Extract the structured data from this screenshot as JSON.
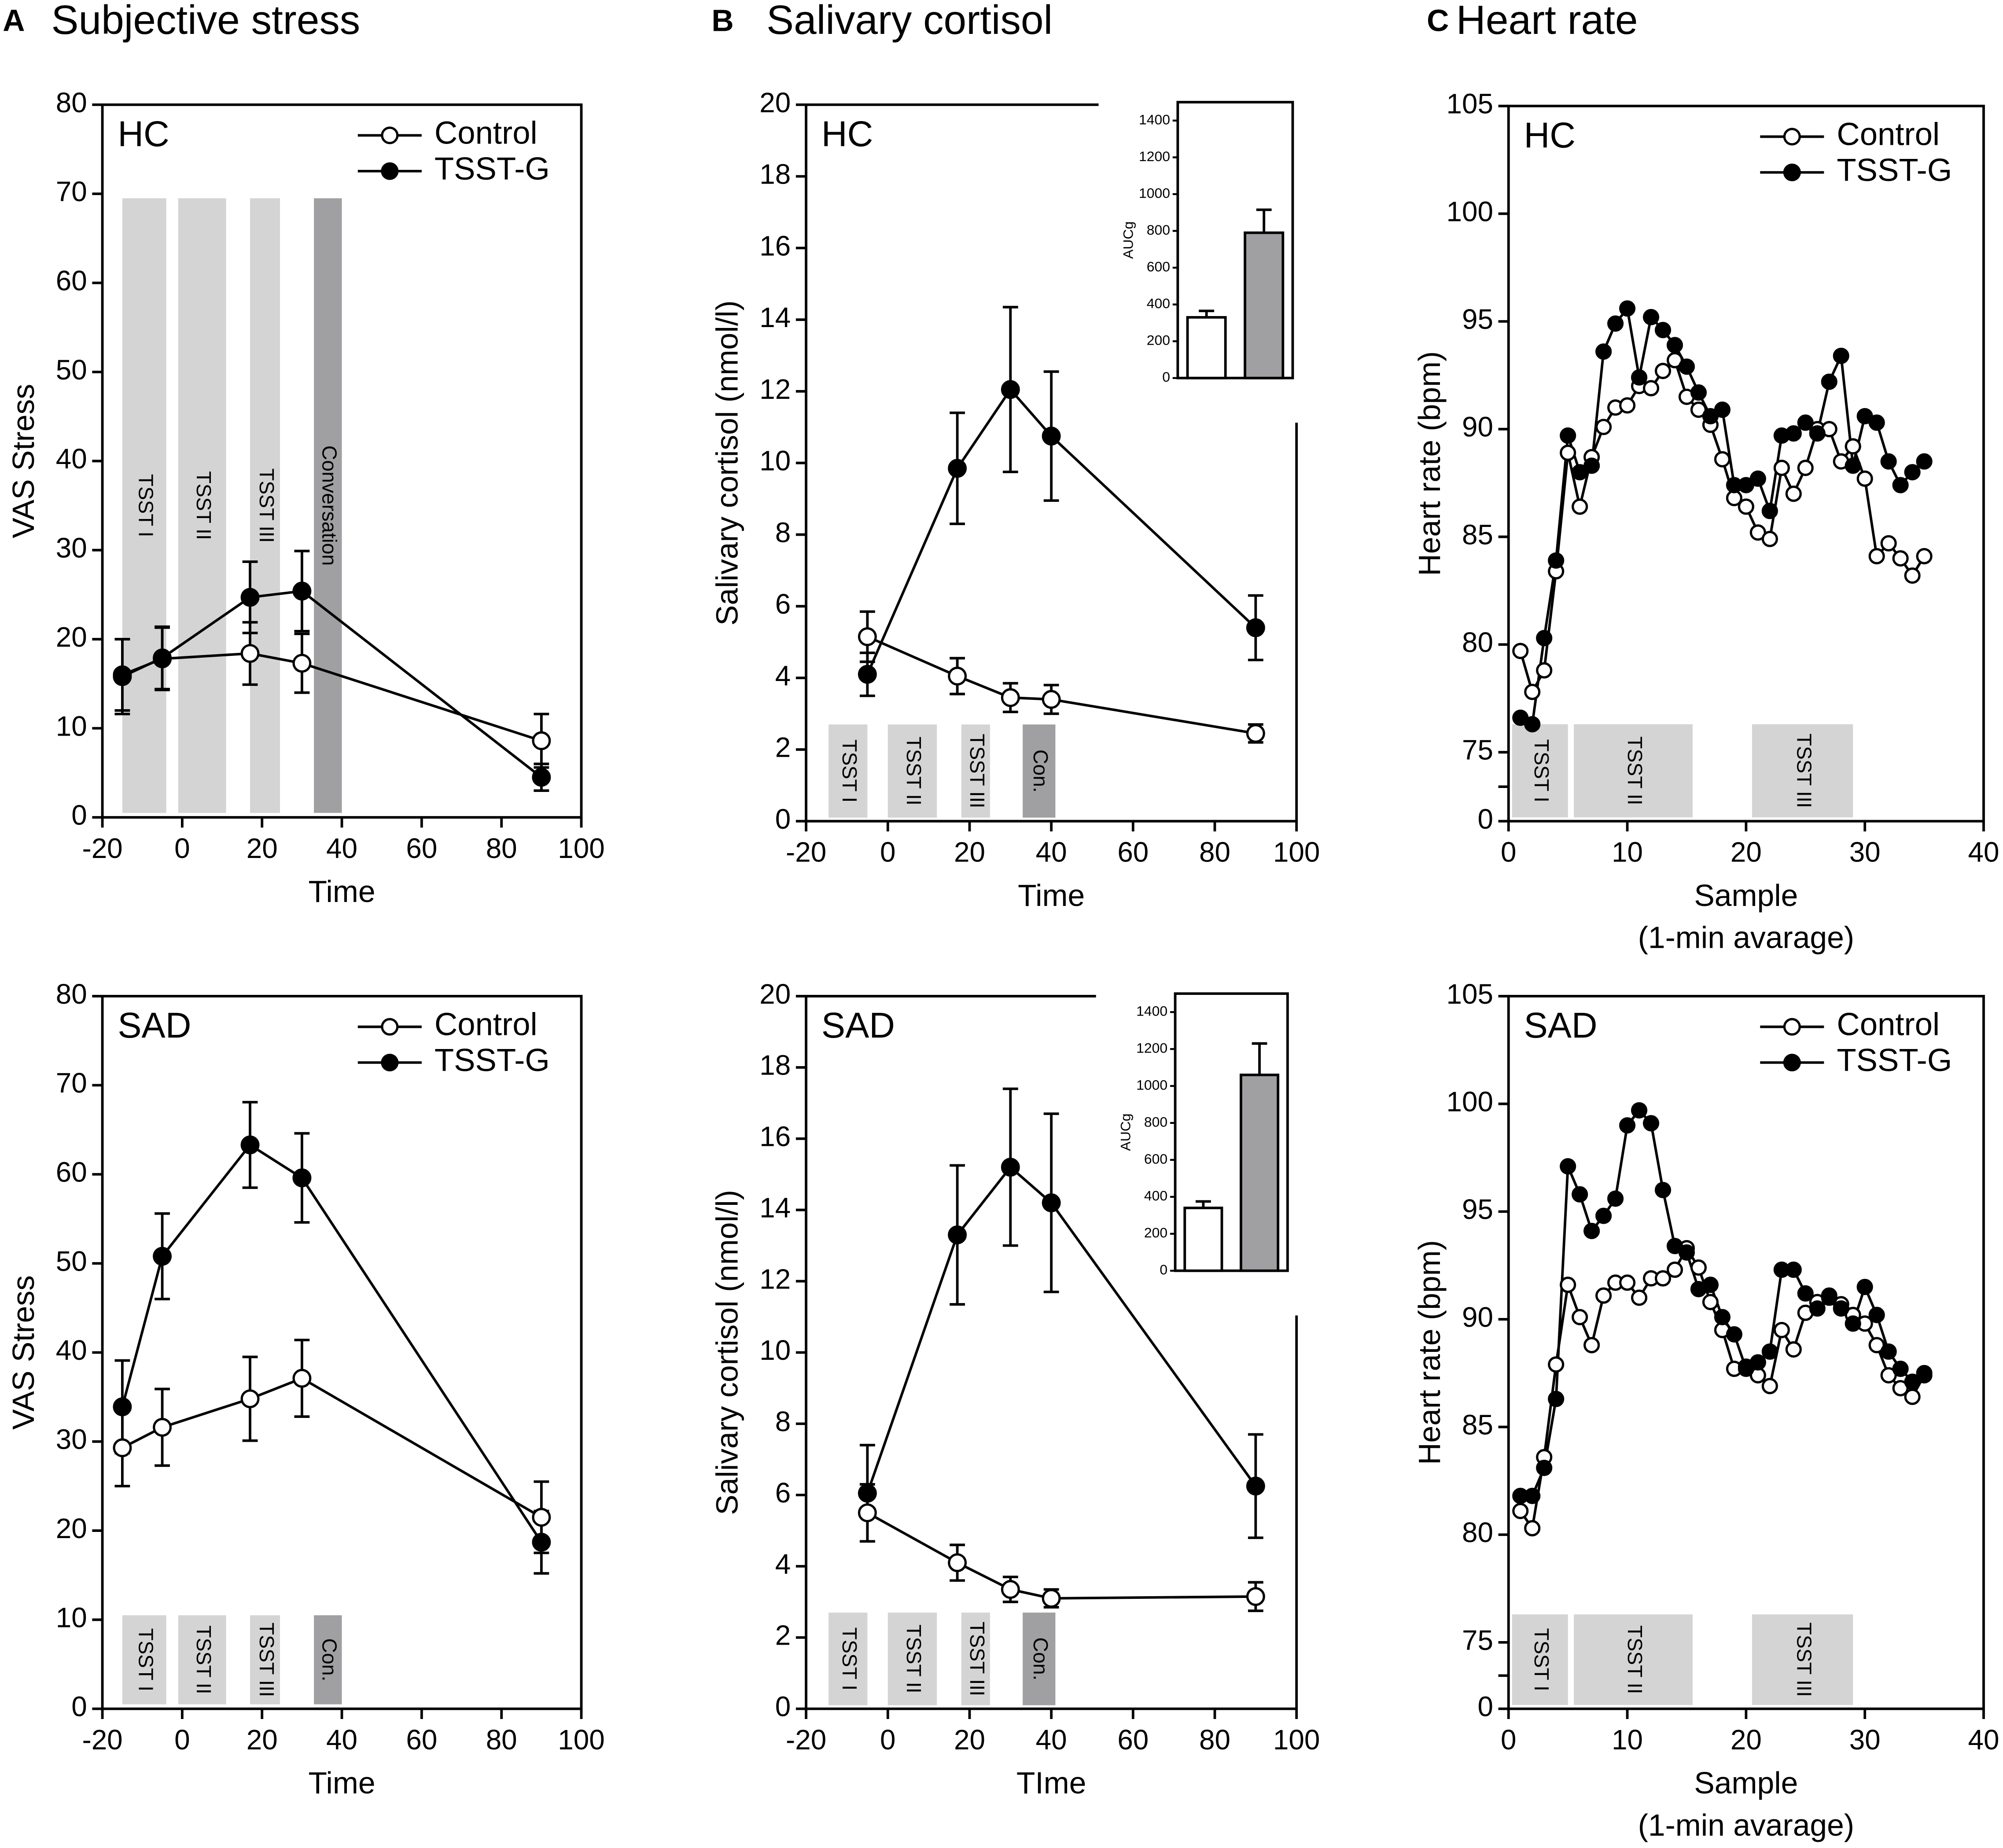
{
  "panels": [
    {
      "letter": "A",
      "title": "Subjective stress"
    },
    {
      "letter": "B",
      "title": "Salivary cortisol"
    },
    {
      "letter": "C",
      "title": "Heart rate"
    }
  ],
  "chart_data": [
    {
      "type": "line",
      "group": "HC",
      "xlabel": "Time",
      "ylabel": "VAS Stress",
      "xlim": [
        -20,
        100
      ],
      "ylim": [
        0,
        80
      ],
      "xticks": [
        -20,
        0,
        20,
        40,
        60,
        80,
        100
      ],
      "yticks": [
        0,
        10,
        20,
        30,
        40,
        50,
        60,
        70,
        80
      ],
      "legend": "upper right",
      "series": [
        {
          "name": "Control",
          "color": "#ffffff",
          "x": [
            -15,
            -5,
            17,
            30,
            90
          ],
          "values": [
            16,
            17.8,
            18.4,
            17.3,
            8.6
          ],
          "errors": [
            4,
            3.5,
            3.5,
            3.3,
            3
          ]
        },
        {
          "name": "TSST-G",
          "color": "#000000",
          "x": [
            -15,
            -5,
            17,
            30,
            90
          ],
          "values": [
            15.8,
            17.9,
            24.7,
            25.4,
            4.5
          ],
          "errors": [
            4.2,
            3.5,
            4,
            4.5,
            1.5
          ]
        }
      ],
      "phases": [
        {
          "label": "TSST I",
          "x0": -15,
          "x1": -4,
          "y0": 0.5,
          "y1": 69.5,
          "color": "#d4d4d4"
        },
        {
          "label": "TSST II",
          "x0": -1,
          "x1": 11,
          "y0": 0.5,
          "y1": 69.5,
          "color": "#d4d4d4"
        },
        {
          "label": "TSST III",
          "x0": 17,
          "x1": 24.5,
          "y0": 0.5,
          "y1": 69.5,
          "color": "#d4d4d4"
        },
        {
          "label": "Conversation",
          "x0": 33,
          "x1": 40,
          "y0": 0.5,
          "y1": 69.5,
          "color": "#a0a0a2"
        }
      ]
    },
    {
      "type": "line",
      "group": "HC",
      "xlabel": "Time",
      "ylabel": "Salivary cortisol (nmol/l)",
      "xlim": [
        -20,
        100
      ],
      "ylim": [
        0,
        20
      ],
      "xticks": [
        -20,
        0,
        20,
        40,
        60,
        80,
        100
      ],
      "yticks": [
        0,
        2,
        4,
        6,
        8,
        10,
        12,
        14,
        16,
        18,
        20
      ],
      "series": [
        {
          "color": "#ffffff",
          "x": [
            -5,
            17,
            30,
            40,
            90
          ],
          "values": [
            5.15,
            4.05,
            3.45,
            3.4,
            2.45
          ],
          "errors": [
            0.7,
            0.5,
            0.4,
            0.4,
            0.25
          ]
        },
        {
          "color": "#000000",
          "x": [
            -5,
            17,
            30,
            40,
            90
          ],
          "values": [
            4.1,
            9.85,
            12.05,
            10.75,
            5.4
          ],
          "errors": [
            0.6,
            1.55,
            2.3,
            1.8,
            0.9
          ]
        }
      ],
      "phases": [
        {
          "label": "TSST I",
          "x0": -14.5,
          "x1": -5,
          "y0": 0.1,
          "y1": 2.7,
          "color": "#d4d4d4"
        },
        {
          "label": "TSST II",
          "x0": 0,
          "x1": 12,
          "y0": 0.1,
          "y1": 2.7,
          "color": "#d4d4d4"
        },
        {
          "label": "TSST III",
          "x0": 18,
          "x1": 25,
          "y0": 0.1,
          "y1": 2.7,
          "color": "#d4d4d4"
        },
        {
          "label": "Con.",
          "x0": 33,
          "x1": 41,
          "y0": 0.1,
          "y1": 2.7,
          "color": "#a0a0a2"
        }
      ]
    },
    {
      "type": "bar",
      "ylabel": "AUCg",
      "ylim": [
        0,
        1500
      ],
      "yticks": [
        0,
        200,
        400,
        600,
        800,
        1000,
        1200,
        1400
      ],
      "values": [
        330,
        790
      ],
      "errors": [
        35,
        125
      ],
      "colors": [
        "#ffffff",
        "#a0a0a2"
      ]
    },
    {
      "type": "line",
      "group": "HC",
      "xlabel": "Sample",
      "xlabel2": "(1-min avarage)",
      "ylabel": "Heart rate (bpm)",
      "xlim": [
        0,
        40
      ],
      "ylim": [
        75,
        105
      ],
      "axis_break": true,
      "xticks": [
        0,
        10,
        20,
        30,
        40
      ],
      "yticks": [
        0,
        75,
        80,
        85,
        90,
        95,
        100,
        105
      ],
      "legend": "upper right",
      "series": [
        {
          "name": "Control",
          "color": "#ffffff",
          "x": [
            1,
            2,
            3,
            4,
            5,
            6,
            7,
            8,
            9,
            10,
            11,
            12,
            13,
            14,
            15,
            16,
            17,
            18,
            19,
            20,
            21,
            22,
            23,
            24,
            25,
            26,
            27,
            28,
            29,
            30,
            31,
            32,
            33,
            34,
            35
          ],
          "values": [
            79.7,
            77.8,
            78.8,
            83.4,
            88.9,
            86.4,
            88.7,
            90.1,
            91.0,
            91.1,
            92.0,
            91.9,
            92.7,
            93.2,
            91.5,
            90.9,
            90.2,
            88.6,
            86.8,
            86.4,
            85.2,
            84.9,
            88.2,
            87.0,
            88.2,
            90.0,
            90.0,
            88.5,
            89.2,
            87.7,
            84.1,
            84.7,
            84.0,
            83.2,
            84.1
          ]
        },
        {
          "name": "TSST-G",
          "color": "#000000",
          "x": [
            1,
            2,
            3,
            4,
            5,
            6,
            7,
            8,
            9,
            10,
            11,
            12,
            13,
            14,
            15,
            16,
            17,
            18,
            19,
            20,
            21,
            22,
            23,
            24,
            25,
            26,
            27,
            28,
            29,
            30,
            31,
            32,
            33,
            34,
            35
          ],
          "values": [
            76.6,
            76.3,
            80.3,
            83.9,
            89.7,
            88.0,
            88.3,
            93.6,
            94.9,
            95.6,
            92.4,
            95.2,
            94.6,
            93.9,
            92.9,
            91.7,
            90.6,
            90.9,
            87.4,
            87.4,
            87.7,
            86.2,
            89.7,
            89.8,
            90.3,
            89.8,
            92.2,
            93.4,
            88.3,
            90.6,
            90.3,
            88.5,
            87.4,
            88.0,
            88.5
          ]
        }
      ],
      "phases": [
        {
          "label": "TSST I",
          "x0": 0.3,
          "x1": 5,
          "y1": 76.3,
          "color": "#d4d4d4"
        },
        {
          "label": "TSST II",
          "x0": 5.5,
          "x1": 15.5,
          "y1": 76.3,
          "color": "#d4d4d4"
        },
        {
          "label": "TSST III",
          "x0": 20.5,
          "x1": 29,
          "y1": 76.3,
          "color": "#d4d4d4"
        }
      ]
    },
    {
      "type": "line",
      "group": "SAD",
      "xlabel": "Time",
      "ylabel": "VAS Stress",
      "xlim": [
        -20,
        100
      ],
      "ylim": [
        0,
        80
      ],
      "xticks": [
        -20,
        0,
        20,
        40,
        60,
        80,
        100
      ],
      "yticks": [
        0,
        10,
        20,
        30,
        40,
        50,
        60,
        70,
        80
      ],
      "legend": "upper right",
      "series": [
        {
          "name": "Control",
          "color": "#ffffff",
          "x": [
            -15,
            -5,
            17,
            30,
            90
          ],
          "values": [
            29.3,
            31.6,
            34.8,
            37.1,
            21.5
          ],
          "errors": [
            4.3,
            4.3,
            4.7,
            4.3,
            4
          ]
        },
        {
          "name": "TSST-G",
          "color": "#000000",
          "x": [
            -15,
            -5,
            17,
            30,
            90
          ],
          "values": [
            33.9,
            50.8,
            63.3,
            59.6,
            18.7
          ],
          "errors": [
            5.2,
            4.8,
            4.8,
            5,
            3.5
          ]
        }
      ],
      "phases": [
        {
          "label": "TSST I",
          "x0": -15,
          "x1": -4,
          "y0": 0.5,
          "y1": 10.5,
          "color": "#d4d4d4"
        },
        {
          "label": "TSST II",
          "x0": -1,
          "x1": 11,
          "y0": 0.5,
          "y1": 10.5,
          "color": "#d4d4d4"
        },
        {
          "label": "TSST III",
          "x0": 17,
          "x1": 24.5,
          "y0": 0.5,
          "y1": 10.5,
          "color": "#d4d4d4"
        },
        {
          "label": "Con.",
          "x0": 33,
          "x1": 40,
          "y0": 0.5,
          "y1": 10.5,
          "color": "#a0a0a2"
        }
      ]
    },
    {
      "type": "line",
      "group": "SAD",
      "xlabel": "TIme",
      "ylabel": "Salivary cortisol (nmol/l)",
      "xlim": [
        -20,
        100
      ],
      "ylim": [
        0,
        20
      ],
      "xticks": [
        -20,
        0,
        20,
        40,
        60,
        80,
        100
      ],
      "yticks": [
        0,
        2,
        4,
        6,
        8,
        10,
        12,
        14,
        16,
        18,
        20
      ],
      "series": [
        {
          "color": "#ffffff",
          "x": [
            -5,
            17,
            30,
            40,
            90
          ],
          "values": [
            5.5,
            4.1,
            3.35,
            3.1,
            3.15
          ],
          "errors": [
            0.8,
            0.5,
            0.35,
            0.25,
            0.4
          ]
        },
        {
          "color": "#000000",
          "x": [
            -5,
            17,
            30,
            40,
            90
          ],
          "values": [
            6.05,
            13.3,
            15.2,
            14.2,
            6.25
          ],
          "errors": [
            1.35,
            1.95,
            2.2,
            2.5,
            1.45
          ]
        }
      ],
      "phases": [
        {
          "label": "TSST I",
          "x0": -14.5,
          "x1": -5,
          "y0": 0.1,
          "y1": 2.7,
          "color": "#d4d4d4"
        },
        {
          "label": "TSST II",
          "x0": 0,
          "x1": 12,
          "y0": 0.1,
          "y1": 2.7,
          "color": "#d4d4d4"
        },
        {
          "label": "TSST III",
          "x0": 18,
          "x1": 25,
          "y0": 0.1,
          "y1": 2.7,
          "color": "#d4d4d4"
        },
        {
          "label": "Con.",
          "x0": 33,
          "x1": 41,
          "y0": 0.1,
          "y1": 2.7,
          "color": "#a0a0a2"
        }
      ]
    },
    {
      "type": "bar",
      "ylabel": "AUCg",
      "ylim": [
        0,
        1500
      ],
      "yticks": [
        0,
        200,
        400,
        600,
        800,
        1000,
        1200,
        1400
      ],
      "values": [
        340,
        1060
      ],
      "errors": [
        35,
        170
      ],
      "colors": [
        "#ffffff",
        "#a0a0a2"
      ]
    },
    {
      "type": "line",
      "group": "SAD",
      "xlabel": "Sample",
      "xlabel2": "(1-min avarage)",
      "ylabel": "Heart rate (bpm)",
      "xlim": [
        0,
        40
      ],
      "ylim": [
        75,
        105
      ],
      "axis_break": true,
      "xticks": [
        0,
        10,
        20,
        30,
        40
      ],
      "yticks": [
        0,
        75,
        80,
        85,
        90,
        95,
        100,
        105
      ],
      "legend": "upper right",
      "series": [
        {
          "name": "Control",
          "color": "#ffffff",
          "x": [
            1,
            2,
            3,
            4,
            5,
            6,
            7,
            8,
            9,
            10,
            11,
            12,
            13,
            14,
            15,
            16,
            17,
            18,
            19,
            20,
            21,
            22,
            23,
            24,
            25,
            26,
            27,
            28,
            29,
            30,
            31,
            32,
            33,
            34,
            35
          ],
          "values": [
            81.1,
            80.3,
            83.6,
            87.9,
            91.6,
            90.1,
            88.8,
            91.1,
            91.7,
            91.7,
            91.0,
            91.9,
            91.9,
            92.3,
            93.3,
            92.4,
            90.8,
            89.5,
            87.7,
            87.8,
            87.4,
            86.9,
            89.5,
            88.6,
            90.3,
            90.8,
            91.1,
            90.7,
            90.2,
            89.8,
            88.8,
            87.4,
            86.8,
            86.4,
            87.4
          ]
        },
        {
          "name": "TSST-G",
          "color": "#000000",
          "x": [
            1,
            2,
            3,
            4,
            5,
            6,
            7,
            8,
            9,
            10,
            11,
            12,
            13,
            14,
            15,
            16,
            17,
            18,
            19,
            20,
            21,
            22,
            23,
            24,
            25,
            26,
            27,
            28,
            29,
            30,
            31,
            32,
            33,
            34,
            35
          ],
          "values": [
            81.8,
            81.8,
            83.1,
            86.3,
            97.1,
            95.8,
            94.1,
            94.8,
            95.6,
            99.0,
            99.7,
            99.1,
            96.0,
            93.4,
            93.1,
            91.4,
            91.6,
            90.1,
            89.3,
            87.7,
            88.0,
            88.5,
            92.3,
            92.3,
            91.2,
            90.5,
            91.0,
            90.5,
            89.8,
            91.5,
            90.2,
            88.5,
            87.7,
            87.1,
            87.5
          ]
        }
      ],
      "phases": [
        {
          "label": "TSST I",
          "x0": 0.3,
          "x1": 5,
          "y1": 76.3,
          "color": "#d4d4d4"
        },
        {
          "label": "TSST II",
          "x0": 5.5,
          "x1": 15.5,
          "y1": 76.3,
          "color": "#d4d4d4"
        },
        {
          "label": "TSST III",
          "x0": 20.5,
          "x1": 29,
          "y1": 76.3,
          "color": "#d4d4d4"
        }
      ]
    }
  ]
}
